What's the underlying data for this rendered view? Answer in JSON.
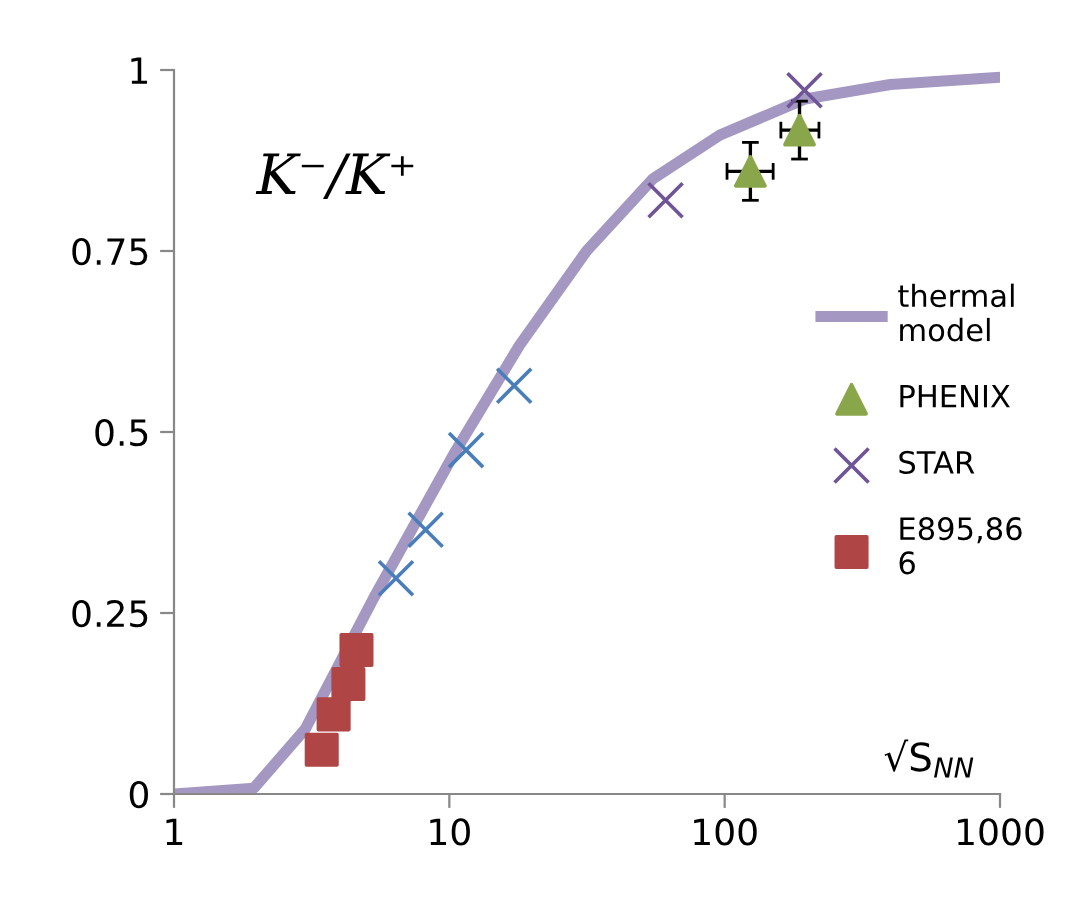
{
  "chart_data": {
    "type": "scatter",
    "xlabel": "√S$_{NN}$",
    "ylabel": "K⁻/K⁺",
    "log": "x",
    "xlim": [
      1,
      1000
    ],
    "xticks": [
      1,
      10,
      100,
      1000
    ],
    "ylim": [
      0,
      1
    ],
    "yticks": [
      0,
      0.25,
      0.5,
      0.75,
      1
    ],
    "grid": false,
    "legend": "right",
    "series": [
      {
        "name": "thermal model",
        "type": "line",
        "color": "#a497c2",
        "marker": "none",
        "x": [
          1,
          1.95,
          3.0,
          5.3,
          10.4,
          18,
          31.5,
          55,
          96,
          196,
          400,
          1000
        ],
        "values": [
          0,
          0.008,
          0.09,
          0.27,
          0.47,
          0.62,
          0.75,
          0.85,
          0.91,
          0.96,
          0.98,
          0.99
        ]
      },
      {
        "name": "PHENIX",
        "color": "#8aa64a",
        "marker": "triangle",
        "x": [
          124,
          187
        ],
        "values": [
          0.86,
          0.917
        ],
        "errors": [
          0.04,
          0.04
        ],
        "xerrors": [
          [
            102,
            150
          ],
          [
            160,
            220
          ]
        ]
      },
      {
        "name": "STAR",
        "color": "#6f5597",
        "marker": "cross",
        "x": [
          61,
          195
        ],
        "values": [
          0.82,
          0.972
        ]
      },
      {
        "name": "E895,866",
        "color": "#b04545",
        "marker": "square",
        "x": [
          3.44,
          3.8,
          4.3,
          4.6
        ],
        "values": [
          0.061,
          0.11,
          0.152,
          0.199
        ]
      },
      {
        "color": "#4a7ebb",
        "marker": "cross",
        "x": [
          6.4,
          8.2,
          11.5,
          17.2
        ],
        "values": [
          0.298,
          0.365,
          0.475,
          0.564
        ]
      }
    ]
  }
}
